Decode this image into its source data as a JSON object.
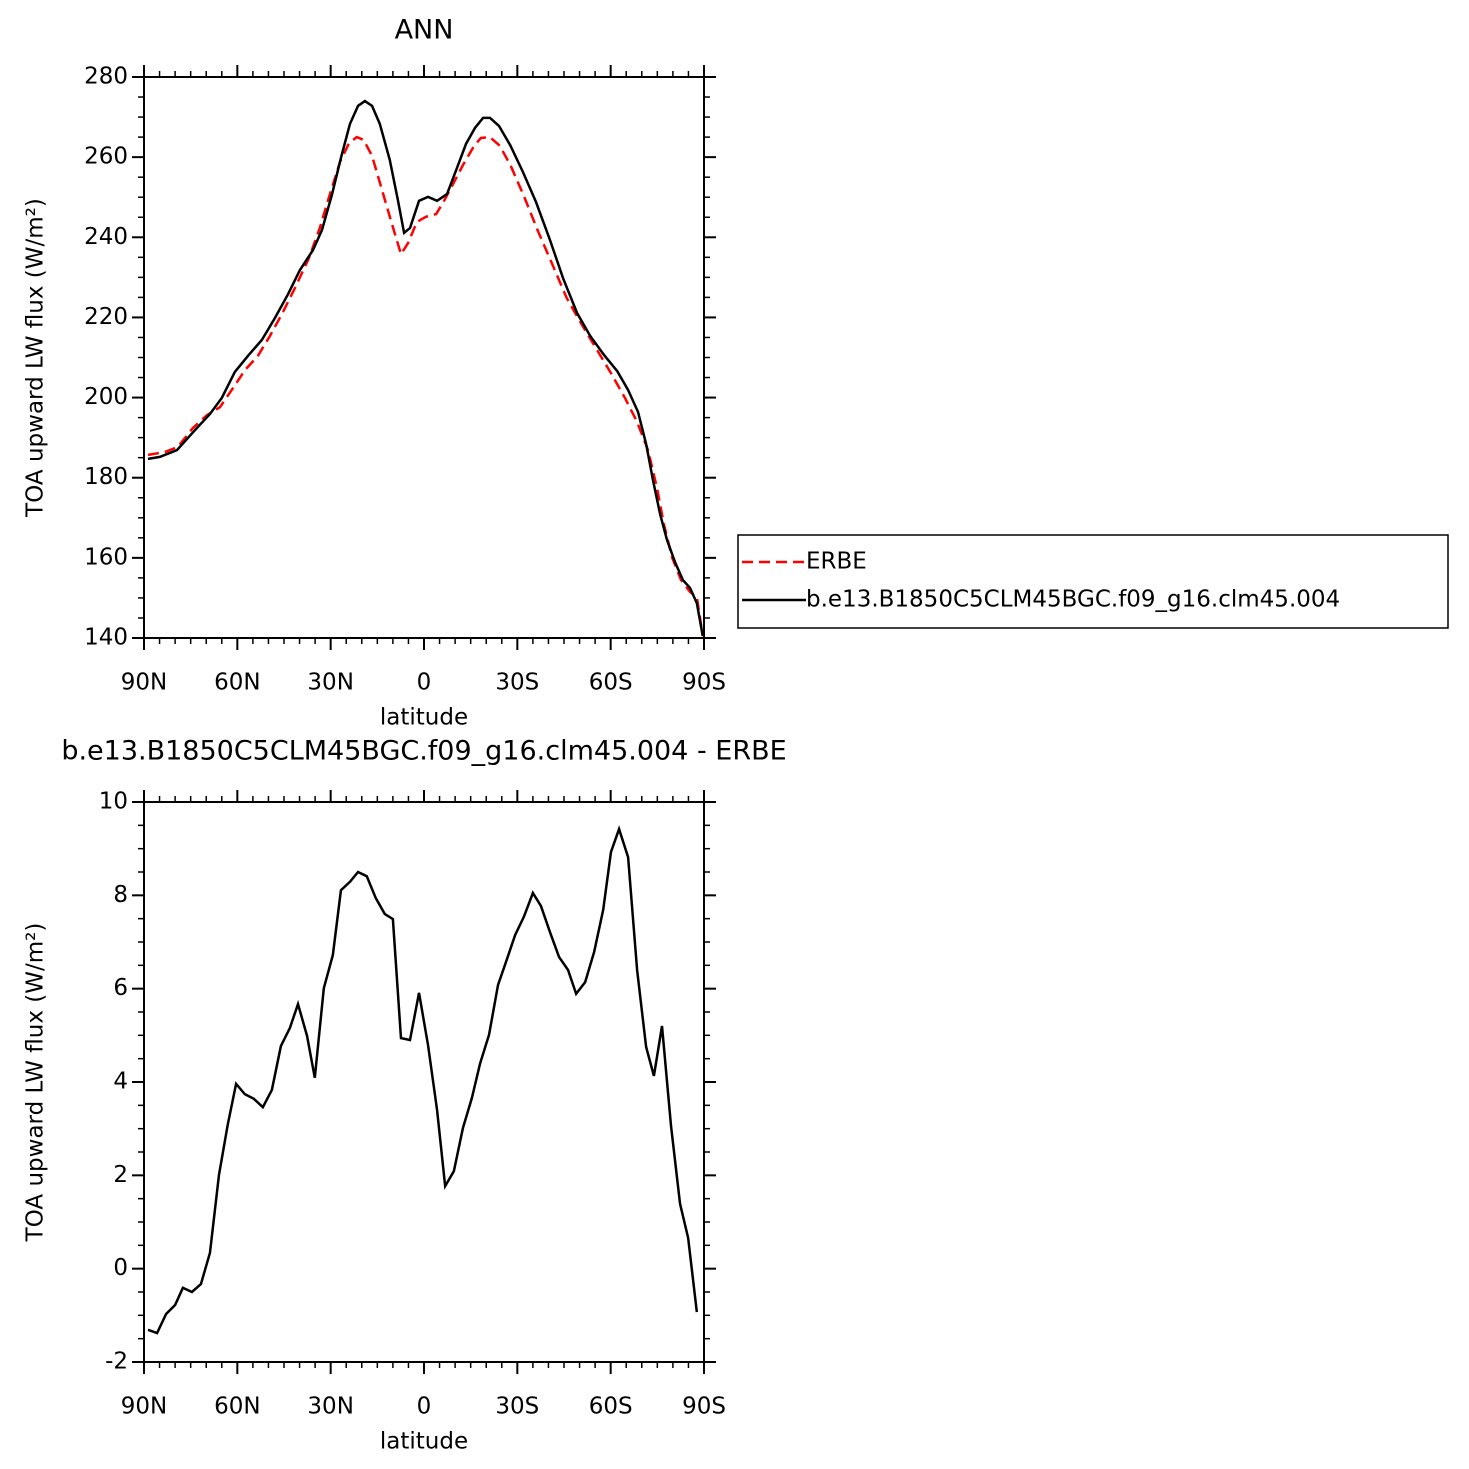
{
  "chart_data": [
    {
      "type": "line",
      "title": "ANN",
      "xlabel": "latitude",
      "ylabel": "TOA upward LW flux (W/m²)",
      "xlim": [
        90,
        -90
      ],
      "xticks": [
        {
          "value": 90,
          "label": "90N"
        },
        {
          "value": 60,
          "label": "60N"
        },
        {
          "value": 30,
          "label": "30N"
        },
        0,
        {
          "value": -30,
          "label": "30S"
        },
        {
          "value": -60,
          "label": "60S"
        },
        {
          "value": -90,
          "label": "90S"
        }
      ],
      "ylim": [
        140,
        280
      ],
      "yticks": [
        140,
        160,
        180,
        200,
        220,
        240,
        260,
        280
      ],
      "legend": "right",
      "series": [
        {
          "name": "ERBE",
          "color": "#ff0000",
          "linestyle": "dashed",
          "x": [
            88.7,
            83.3,
            79.1,
            74.3,
            69.8,
            65.6,
            61.8,
            57.5,
            53.4,
            49.5,
            45.3,
            41.2,
            37.0,
            33.5,
            30.3,
            27.0,
            24.1,
            21.6,
            19.4,
            16.7,
            13.5,
            10.3,
            7.4,
            5.1,
            2.3,
            -0.6,
            -3.9,
            -6.1,
            -9.0,
            -12.5,
            -16.1,
            -18.3,
            -21.2,
            -24.4,
            -27.9,
            -32.1,
            -36.6,
            -41.5,
            -45.9,
            -50.8,
            -55.6,
            -60.1,
            -64.6,
            -68.5,
            -72.0,
            -74.9,
            -77.1,
            -79.7,
            -82.6,
            -85.5,
            -87.7,
            -89.6
          ],
          "values": [
            185.7,
            186.4,
            187.7,
            192.4,
            195.6,
            197.6,
            201.9,
            206.9,
            210.4,
            215.4,
            221.4,
            227.8,
            234.8,
            242.3,
            250.6,
            258.8,
            263.5,
            265.0,
            264.3,
            260.3,
            251.8,
            243.3,
            235.8,
            238.6,
            243.8,
            245.1,
            245.8,
            248.6,
            252.8,
            258.0,
            262.8,
            264.8,
            265.0,
            262.8,
            257.8,
            250.3,
            241.6,
            232.8,
            224.8,
            218.1,
            211.9,
            206.1,
            199.9,
            193.9,
            186.9,
            177.4,
            168.4,
            160.2,
            154.5,
            151.5,
            150.2,
            140.5
          ]
        },
        {
          "name": "b.e13.B1850C5CLM45BGC.f09_g16.clm45.004",
          "color": "#000000",
          "linestyle": "solid",
          "x": [
            88.7,
            84.9,
            79.4,
            73.6,
            68.8,
            65.0,
            60.8,
            56.6,
            52.1,
            47.9,
            43.7,
            39.9,
            35.7,
            32.8,
            29.6,
            26.7,
            23.8,
            21.2,
            19.0,
            16.7,
            14.2,
            11.0,
            8.4,
            6.4,
            4.5,
            1.6,
            -1.3,
            -4.2,
            -7.4,
            -10.6,
            -13.5,
            -16.4,
            -19.0,
            -21.2,
            -24.1,
            -27.7,
            -31.8,
            -36.0,
            -40.5,
            -44.7,
            -49.2,
            -53.4,
            -57.9,
            -62.1,
            -65.6,
            -68.8,
            -71.4,
            -73.6,
            -75.9,
            -78.1,
            -80.7,
            -83.2,
            -85.5,
            -87.7,
            -89.6
          ],
          "values": [
            184.7,
            185.2,
            186.9,
            191.9,
            195.9,
            199.9,
            206.4,
            210.4,
            214.4,
            219.9,
            225.8,
            231.8,
            236.8,
            241.8,
            250.6,
            259.8,
            268.3,
            272.8,
            274.0,
            272.8,
            268.3,
            259.3,
            249.3,
            241.1,
            242.3,
            249.1,
            250.1,
            249.1,
            250.8,
            257.3,
            263.3,
            267.3,
            269.8,
            269.8,
            267.8,
            263.0,
            256.3,
            248.8,
            239.3,
            229.8,
            221.1,
            215.4,
            210.6,
            206.6,
            201.9,
            196.4,
            188.4,
            179.4,
            170.9,
            164.5,
            158.9,
            154.5,
            152.5,
            148.7,
            140.5
          ]
        }
      ]
    },
    {
      "type": "line",
      "title": "b.e13.B1850C5CLM45BGC.f09_g16.clm45.004 - ERBE",
      "xlabel": "latitude",
      "ylabel": "TOA upward LW flux (W/m²)",
      "xlim": [
        90,
        -90
      ],
      "xticks": [
        {
          "value": 90,
          "label": "90N"
        },
        {
          "value": 60,
          "label": "60N"
        },
        {
          "value": 30,
          "label": "30N"
        },
        0,
        {
          "value": -30,
          "label": "30S"
        },
        {
          "value": -60,
          "label": "60S"
        },
        {
          "value": -90,
          "label": "90S"
        }
      ],
      "ylim": [
        -2,
        10
      ],
      "yticks": [
        -2,
        0,
        2,
        4,
        6,
        8,
        10
      ],
      "series": [
        {
          "color": "#000000",
          "linestyle": "solid",
          "x": [
            88.7,
            85.8,
            82.9,
            80.0,
            77.5,
            74.6,
            71.7,
            68.8,
            65.9,
            63.1,
            60.4,
            57.6,
            54.7,
            51.8,
            48.9,
            46.0,
            43.1,
            40.5,
            37.6,
            35.1,
            32.2,
            29.3,
            26.7,
            23.8,
            21.2,
            18.4,
            15.5,
            12.6,
            10.0,
            7.4,
            4.5,
            1.6,
            -1.3,
            -4.2,
            -6.8,
            -9.6,
            -12.5,
            -15.4,
            -18.0,
            -20.9,
            -23.8,
            -26.7,
            -29.3,
            -32.1,
            -35.0,
            -37.6,
            -40.5,
            -43.4,
            -46.3,
            -48.9,
            -51.8,
            -54.7,
            -57.6,
            -60.1,
            -62.7,
            -65.6,
            -68.5,
            -71.4,
            -73.9,
            -76.5,
            -79.4,
            -82.3,
            -84.9,
            -87.7
          ],
          "values": [
            -1.31,
            -1.38,
            -0.97,
            -0.78,
            -0.41,
            -0.5,
            -0.33,
            0.34,
            2.01,
            3.08,
            3.96,
            3.74,
            3.64,
            3.46,
            3.83,
            4.77,
            5.16,
            5.67,
            4.99,
            4.09,
            6.01,
            6.72,
            8.11,
            8.29,
            8.5,
            8.41,
            7.94,
            7.6,
            7.49,
            4.94,
            4.9,
            5.91,
            4.79,
            3.4,
            1.77,
            2.09,
            3.01,
            3.66,
            4.39,
            5.01,
            6.08,
            6.64,
            7.15,
            7.54,
            8.05,
            7.77,
            7.21,
            6.68,
            6.4,
            5.89,
            6.14,
            6.79,
            7.69,
            8.93,
            9.42,
            8.82,
            6.4,
            4.75,
            4.13,
            5.2,
            3.06,
            1.39,
            0.66,
            -0.93
          ]
        }
      ]
    }
  ]
}
